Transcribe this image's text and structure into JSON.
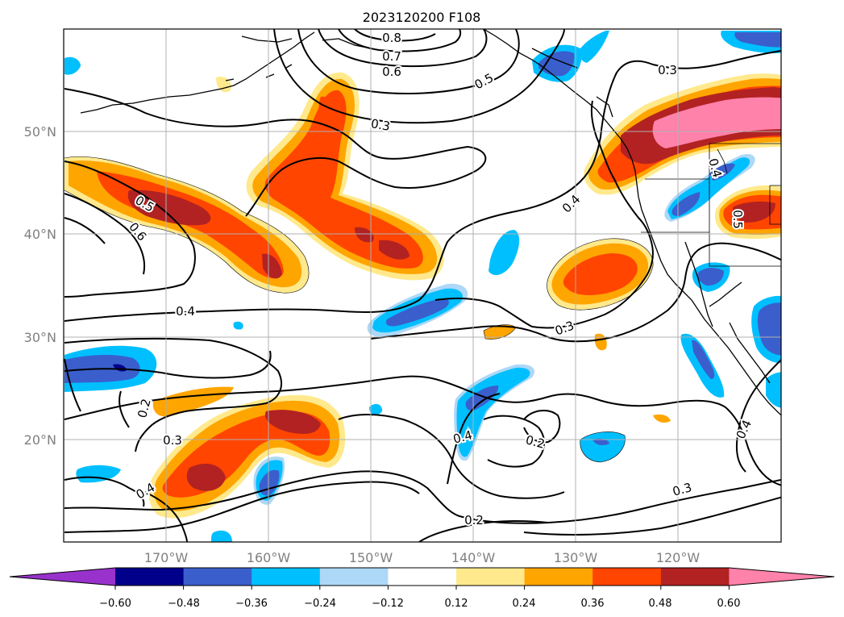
{
  "title": "2023120200 F108",
  "map": {
    "lon_range": [
      -180,
      -110
    ],
    "lat_range": [
      10,
      60
    ],
    "gridlines": true,
    "coastlines": true,
    "state_borders": true
  },
  "axes": {
    "x_ticks": [
      "170°W",
      "160°W",
      "150°W",
      "140°W",
      "130°W",
      "120°W"
    ],
    "y_ticks": [
      "50°N",
      "40°N",
      "30°N",
      "20°N"
    ]
  },
  "colorbar": {
    "orientation": "horizontal",
    "extend": "both",
    "ticks": [
      "−0.60",
      "−0.48",
      "−0.36",
      "−0.24",
      "−0.12",
      "0.12",
      "0.24",
      "0.36",
      "0.48",
      "0.60"
    ],
    "colors": [
      "#9932CC",
      "#00008B",
      "#3A5FCD",
      "#00BFFF",
      "#ADD8F7",
      "#FFFFFF",
      "#FFE98C",
      "#FFA500",
      "#FF4500",
      "#B22222",
      "#FF82AB"
    ]
  },
  "contour_labels": [
    "0.8",
    "0.7",
    "0.6",
    "0.5",
    "0.3",
    "0.3",
    "0.5",
    "0.6",
    "0.4",
    "0.4",
    "0.3",
    "0.2",
    "0.3",
    "0.4",
    "0.4",
    "0.2",
    "0.2",
    "0.3",
    "0.4",
    "0.5",
    "0.4"
  ]
}
